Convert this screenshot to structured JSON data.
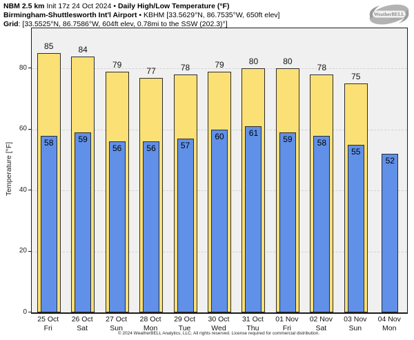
{
  "header": {
    "line1": {
      "bold1": "NBM 2.5 km",
      "text1": " Init 17z 24 Oct 2024 • ",
      "bold2": "Daily High/Low Temperature (°F)"
    },
    "line2": {
      "bold": "Birmingham-Shuttlesworth Int'l Airport",
      "text": " • KBHM [33.5629°N, 86.7535°W, 650ft elev]"
    },
    "line3": {
      "bold": "Grid",
      "text": ": [33.5525°N, 86.7586°W, 604ft elev, 0.78mi to the SSW (202.3)°]"
    }
  },
  "logo": {
    "text": "WeatherBELL",
    "subtext": "Analytics LLC"
  },
  "chart_data": {
    "type": "bar",
    "title": "NBM 2.5 km Init 17z 24 Oct 2024 • Daily High/Low Temperature (°F)",
    "location": "Birmingham-Shuttlesworth Int'l Airport • KBHM",
    "ylabel": "Temperature [°F]",
    "ylim": [
      0,
      93.2
    ],
    "yticks": [
      0,
      20,
      40,
      60,
      80
    ],
    "grid": "dashed horizontal",
    "legend": "none",
    "categories": [
      {
        "date": "25 Oct",
        "day": "Fri"
      },
      {
        "date": "26 Oct",
        "day": "Sat"
      },
      {
        "date": "27 Oct",
        "day": "Sun"
      },
      {
        "date": "28 Oct",
        "day": "Mon"
      },
      {
        "date": "29 Oct",
        "day": "Tue"
      },
      {
        "date": "30 Oct",
        "day": "Wed"
      },
      {
        "date": "31 Oct",
        "day": "Thu"
      },
      {
        "date": "01 Nov",
        "day": "Fri"
      },
      {
        "date": "02 Nov",
        "day": "Sat"
      },
      {
        "date": "03 Nov",
        "day": "Sun"
      },
      {
        "date": "04 Nov",
        "day": "Mon"
      }
    ],
    "series": [
      {
        "name": "Daily High",
        "color": "#FBE076",
        "values": [
          85,
          84,
          79,
          77,
          78,
          79,
          80,
          80,
          78,
          75,
          null
        ]
      },
      {
        "name": "Daily Low",
        "color": "#6090E8",
        "values": [
          58,
          59,
          56,
          56,
          57,
          60,
          61,
          59,
          58,
          55,
          52
        ]
      }
    ],
    "colors": {
      "plot_background": "#F0F0F0",
      "gridline": "#D2D2D2",
      "bar_border": "#2B2B2B",
      "axis": "#1A1A1A"
    }
  },
  "footer": {
    "copyright": "© 2024 WeatherBELL Analytics, LLC. All rights reserved. License required for commercial distribution."
  }
}
